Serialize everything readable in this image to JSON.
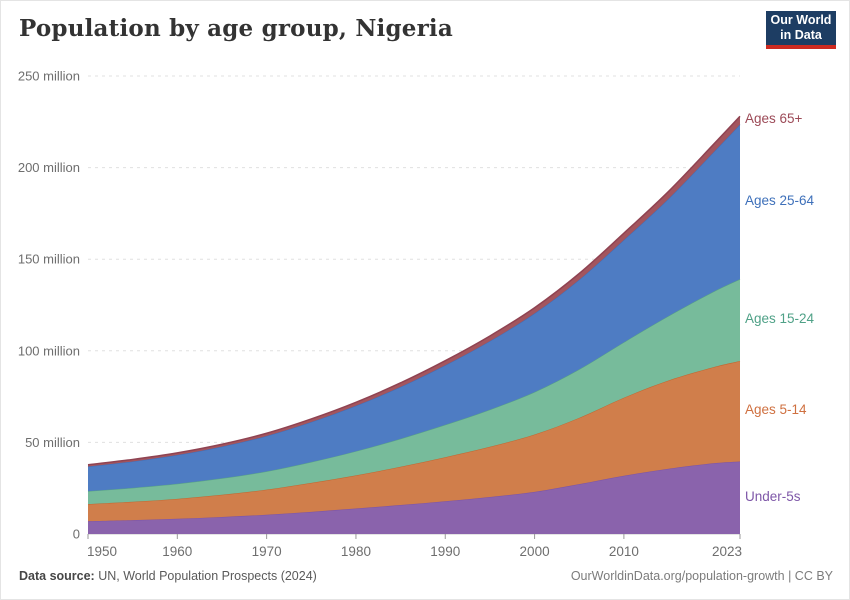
{
  "header": {
    "logo": {
      "line1": "Our World",
      "line2": "in Data",
      "bg_color": "#1d3d63",
      "accent_color": "#cd2a20"
    }
  },
  "chart_data": {
    "type": "area",
    "stacked": true,
    "title": "Population by age group, Nigeria",
    "xlabel": "",
    "ylabel": "",
    "xlim": [
      1950,
      2023
    ],
    "ylim": [
      0,
      250
    ],
    "grid": "horizontal-dashed",
    "legend_position": "right-edge-labels",
    "x": [
      1950,
      1955,
      1960,
      1965,
      1970,
      1975,
      1980,
      1985,
      1990,
      1995,
      2000,
      2005,
      2010,
      2015,
      2020,
      2023
    ],
    "series": [
      {
        "name": "Under-5s",
        "values": [
          7.0,
          7.6,
          8.3,
          9.3,
          10.5,
          12.1,
          13.9,
          15.8,
          17.9,
          20.2,
          23.0,
          27.2,
          31.8,
          35.6,
          38.6,
          39.6
        ],
        "fill": "#8a63ac",
        "stroke": "#7b53a6",
        "label_color": "#7e57a8"
      },
      {
        "name": "Ages 5-14",
        "values": [
          9.3,
          10.0,
          10.9,
          12.1,
          13.7,
          15.8,
          18.1,
          20.9,
          24.0,
          27.4,
          31.3,
          36.2,
          42.6,
          48.2,
          52.4,
          54.8
        ],
        "fill": "#d07e4b",
        "stroke": "#c2662f",
        "label_color": "#cf7040"
      },
      {
        "name": "Ages 15-24",
        "values": [
          7.1,
          7.6,
          8.2,
          9.0,
          10.0,
          11.4,
          13.2,
          15.3,
          17.7,
          20.3,
          23.2,
          26.5,
          30.3,
          35.2,
          41.2,
          44.7
        ],
        "fill": "#77bb9b",
        "stroke": "#57a185",
        "label_color": "#4fa187"
      },
      {
        "name": "Ages 25-64",
        "values": [
          13.4,
          14.4,
          15.7,
          17.3,
          19.3,
          21.8,
          24.8,
          28.3,
          32.5,
          37.4,
          42.9,
          48.9,
          55.8,
          64.0,
          76.0,
          84.4
        ],
        "fill": "#4e7cc3",
        "stroke": "#3f6eb8",
        "label_color": "#3e70ba"
      },
      {
        "name": "Ages 65+",
        "values": [
          1.0,
          1.1,
          1.2,
          1.3,
          1.5,
          1.7,
          1.9,
          2.2,
          2.5,
          2.8,
          3.1,
          3.4,
          3.7,
          4.0,
          4.3,
          4.5
        ],
        "fill": "#a3555e",
        "stroke": "#8f4352",
        "label_color": "#9c4a57"
      }
    ],
    "x_ticks": [
      1950,
      1960,
      1970,
      1980,
      1990,
      2000,
      2010,
      2023
    ],
    "y_ticks": [
      {
        "value": 0,
        "label": "0"
      },
      {
        "value": 50,
        "label": "50 million"
      },
      {
        "value": 100,
        "label": "100 million"
      },
      {
        "value": 150,
        "label": "150 million"
      },
      {
        "value": 200,
        "label": "200 million"
      },
      {
        "value": 250,
        "label": "250 million"
      }
    ],
    "colors": {
      "gridline": "#e0e0e0",
      "axis_text": "#6e6e6e",
      "tick_mark": "#999999",
      "baseline": "#c9c9c9"
    }
  },
  "footer": {
    "source_label": "Data source:",
    "source_text": " UN, World Population Prospects (2024)",
    "right_text": "OurWorldinData.org/population-growth | CC BY"
  }
}
